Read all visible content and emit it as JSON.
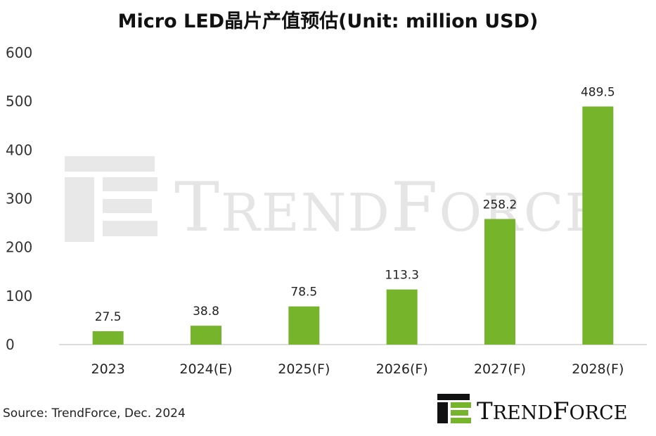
{
  "title": "Micro LED晶片产值预估(Unit: million USD)",
  "source": "Source: TrendForce, Dec. 2024",
  "watermark": "TrendForce",
  "logo_text": "TrendForce",
  "colors": {
    "bar": "#76b52b",
    "watermark": "#dcdcdc",
    "logo_bar": "#76b52b",
    "logo_dark": "#111111"
  },
  "chart_data": {
    "type": "bar",
    "title": "Micro LED晶片产值预估(Unit: million USD)",
    "categories": [
      "2023",
      "2024(E)",
      "2025(F)",
      "2026(F)",
      "2027(F)",
      "2028(F)"
    ],
    "values": [
      27.5,
      38.8,
      78.5,
      113.3,
      258.2,
      489.5
    ],
    "data_labels": [
      "27.5",
      "38.8",
      "78.5",
      "113.3",
      "258.2",
      "489.5"
    ],
    "ylim": [
      0,
      600
    ],
    "yticks": [
      0,
      100,
      200,
      300,
      400,
      500,
      600
    ],
    "grid": false,
    "legend": "none"
  }
}
